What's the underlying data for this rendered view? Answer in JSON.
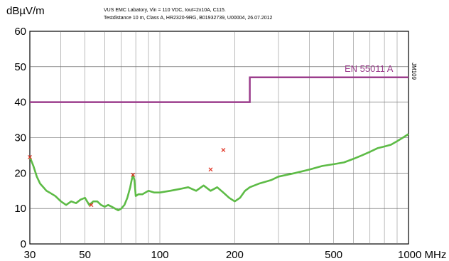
{
  "chart_data": {
    "type": "line",
    "title": "",
    "notes": [
      "VUS EMC Labatory, Vin = 110 VDC, Iout=2x10A, C115.",
      "Testdistance 10 m, Class A, HR2320-9RG, B01932739, U00004, 26.07.2012"
    ],
    "ylabel": "dBµV/m",
    "xunit": "MHz",
    "xscale": "log",
    "xlim": [
      30,
      1000
    ],
    "ylim": [
      0,
      60
    ],
    "xticks": [
      30,
      50,
      100,
      200,
      500,
      1000
    ],
    "xtick_labels": [
      "30",
      "50",
      "100",
      "200",
      "500",
      "1000 MHz"
    ],
    "yticks": [
      0,
      10,
      20,
      30,
      40,
      50,
      60
    ],
    "ytick_labels": [
      "0",
      "10",
      "20",
      "30",
      "40",
      "50",
      "60"
    ],
    "grid": true,
    "side_label": "JM109",
    "limit_line": {
      "name": "EN 55011 A",
      "color": "#9b3d8c",
      "x": [
        30,
        230,
        230,
        1000
      ],
      "y": [
        40,
        40,
        47,
        47
      ]
    },
    "series": [
      {
        "color": "#5dbb46",
        "x": [
          30,
          31,
          32,
          33,
          34,
          35,
          36,
          38,
          40,
          42,
          44,
          46,
          48,
          50,
          52,
          54,
          56,
          58,
          60,
          62,
          64,
          66,
          68,
          70,
          72,
          74,
          76,
          77,
          78,
          79,
          80,
          82,
          85,
          90,
          95,
          100,
          110,
          120,
          130,
          140,
          150,
          160,
          170,
          180,
          190,
          200,
          210,
          220,
          230,
          250,
          280,
          300,
          350,
          400,
          450,
          500,
          550,
          600,
          650,
          700,
          750,
          800,
          850,
          900,
          950,
          1000
        ],
        "y": [
          24.5,
          22,
          19,
          17,
          16,
          15,
          14.5,
          13.5,
          12,
          11,
          12,
          11.5,
          12.5,
          13,
          11,
          12,
          12,
          11,
          10.5,
          11,
          10.5,
          10,
          9.5,
          10,
          11,
          13,
          16,
          18,
          19.5,
          18,
          13.5,
          14,
          14,
          15,
          14.5,
          14.5,
          15,
          15.5,
          16,
          15,
          16.5,
          15,
          16,
          14.5,
          13,
          12,
          13,
          15,
          16,
          17,
          18,
          19,
          20,
          21,
          22,
          22.5,
          23,
          24,
          25,
          26,
          27,
          27.5,
          28,
          29,
          30,
          31
        ]
      }
    ],
    "peaks": [
      {
        "x": 30,
        "y": 24.5
      },
      {
        "x": 53,
        "y": 11
      },
      {
        "x": 78,
        "y": 19.5
      },
      {
        "x": 160,
        "y": 21
      },
      {
        "x": 180,
        "y": 26.5
      }
    ],
    "peak_color": "#e03020"
  }
}
